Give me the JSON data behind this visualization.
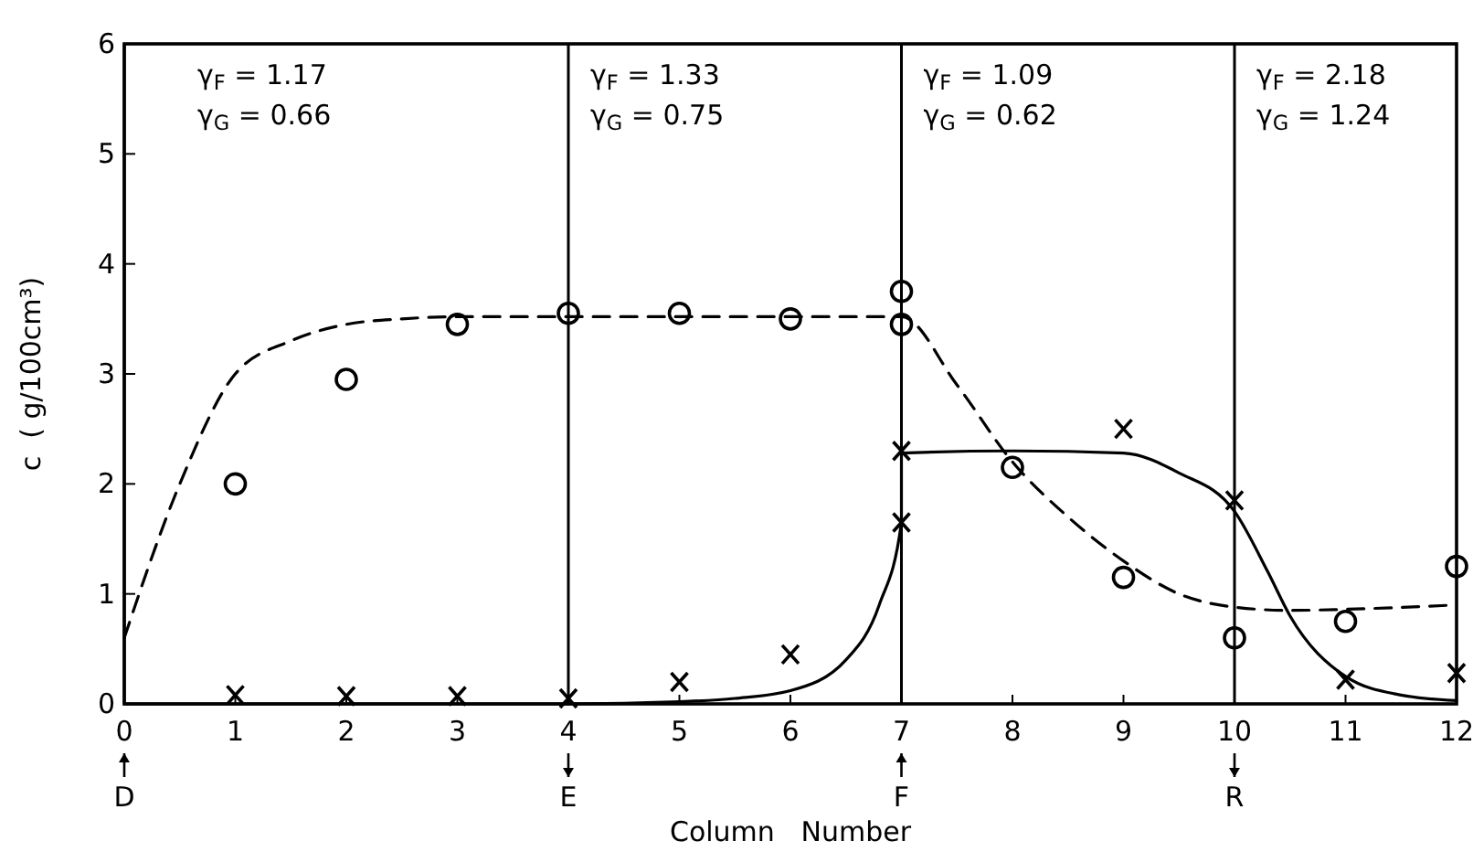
{
  "chart_data": {
    "type": "scatter",
    "xlabel": "Column   Number",
    "ylabel": "c  ( g/100cm³)",
    "xlim": [
      0,
      12
    ],
    "ylim": [
      0,
      6
    ],
    "xticks": [
      0,
      1,
      2,
      3,
      4,
      5,
      6,
      7,
      8,
      9,
      10,
      11,
      12
    ],
    "yticks": [
      0,
      1,
      2,
      3,
      4,
      5,
      6
    ],
    "grid": false,
    "series": [
      {
        "marker": "circle",
        "color": "#000000",
        "x": [
          1,
          2,
          3,
          4,
          5,
          6,
          7,
          7,
          8,
          9,
          10,
          11,
          12
        ],
        "values": [
          2.0,
          2.95,
          3.45,
          3.55,
          3.55,
          3.5,
          3.75,
          3.45,
          2.15,
          1.15,
          0.6,
          0.75,
          1.25
        ]
      },
      {
        "marker": "cross",
        "color": "#000000",
        "x": [
          1,
          2,
          3,
          4,
          5,
          6,
          7,
          7,
          9,
          10,
          11,
          12
        ],
        "values": [
          0.08,
          0.07,
          0.07,
          0.05,
          0.2,
          0.45,
          2.3,
          1.65,
          2.5,
          1.85,
          0.22,
          0.28
        ]
      },
      {
        "type": "line",
        "marker": "none",
        "line_style": "dashed",
        "color": "#000000",
        "x": [
          0,
          0.5,
          1,
          1.5,
          2,
          2.5,
          3,
          4,
          5,
          6,
          7,
          7.5,
          8,
          8.5,
          9,
          9.5,
          10,
          10.5,
          11,
          12
        ],
        "values": [
          0.6,
          2.0,
          3.0,
          3.3,
          3.45,
          3.5,
          3.52,
          3.52,
          3.52,
          3.52,
          3.52,
          2.9,
          2.2,
          1.7,
          1.3,
          1.0,
          0.88,
          0.85,
          0.86,
          0.9
        ]
      },
      {
        "type": "line",
        "marker": "none",
        "line_style": "solid",
        "color": "#000000",
        "x": [
          0,
          4,
          5,
          5.5,
          6,
          6.5,
          6.8,
          7,
          7,
          8,
          9,
          9.5,
          10,
          10.3,
          10.5,
          11,
          11.5,
          12
        ],
        "values": [
          0,
          0,
          0.02,
          0.05,
          0.12,
          0.4,
          0.9,
          1.65,
          2.28,
          2.3,
          2.28,
          2.1,
          1.75,
          1.2,
          0.8,
          0.25,
          0.08,
          0.03
        ]
      }
    ],
    "ref_lines": [
      {
        "axis": "x",
        "value": 0,
        "label": "D",
        "color": "#000000"
      },
      {
        "axis": "x",
        "value": 4,
        "label": "E",
        "color": "#000000"
      },
      {
        "axis": "x",
        "value": 7,
        "label": "F",
        "color": "#000000"
      },
      {
        "axis": "x",
        "value": 10,
        "label": "R",
        "color": "#000000"
      }
    ],
    "annotations": [
      "γ$_{F}$ = 1.17",
      "γ$_{G}$ = 0.66",
      "γ$_{F}$ = 1.33",
      "γ$_{G}$ = 0.75",
      "γ$_{F}$ = 1.09",
      "γ$_{G}$ = 0.62",
      "γ$_{F}$ = 2.18",
      "γ$_{G}$ = 1.24"
    ]
  }
}
